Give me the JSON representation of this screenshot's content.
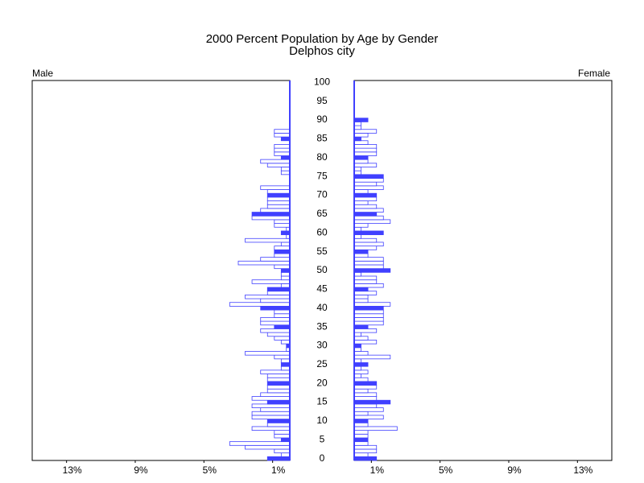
{
  "chart_data": {
    "type": "pyramid",
    "title": "2000 Percent Population by Age by Gender",
    "subtitle": "Delphos city",
    "categories": [
      0,
      null,
      null,
      null,
      null,
      5,
      null,
      null,
      null,
      null,
      10,
      null,
      null,
      null,
      null,
      15,
      null,
      null,
      null,
      null,
      20,
      null,
      null,
      null,
      null,
      25,
      null,
      null,
      null,
      null,
      30,
      null,
      null,
      null,
      null,
      35,
      null,
      null,
      null,
      null,
      40,
      null,
      null,
      null,
      null,
      45,
      null,
      null,
      null,
      null,
      50,
      null,
      null,
      null,
      null,
      55,
      null,
      null,
      null,
      null,
      60,
      null,
      null,
      null,
      null,
      65,
      null,
      null,
      null,
      null,
      70,
      null,
      null,
      null,
      null,
      75,
      null,
      null,
      null,
      null,
      80,
      null,
      null,
      null,
      null,
      85,
      null,
      null,
      null,
      null,
      90,
      null,
      null,
      null,
      null,
      95,
      null,
      null,
      null,
      null,
      100
    ],
    "series": [
      {
        "name": "Male",
        "color": "#4040ff",
        "values": [
          1.3,
          0.5,
          0.9,
          2.6,
          3.5,
          0.5,
          0.9,
          0.9,
          2.2,
          1.3,
          1.3,
          2.2,
          2.2,
          1.7,
          2.2,
          1.3,
          2.2,
          1.7,
          1.3,
          1.3,
          1.3,
          1.3,
          1.3,
          1.7,
          0.5,
          0.5,
          0.5,
          0.9,
          2.6,
          0.2,
          0.2,
          0.5,
          0.9,
          1.3,
          1.7,
          0.9,
          1.7,
          1.7,
          0.9,
          0.9,
          1.7,
          3.5,
          1.7,
          2.6,
          1.3,
          1.3,
          0.5,
          2.2,
          0.5,
          0.5,
          0.5,
          0.9,
          3.0,
          1.7,
          0.9,
          0.9,
          0.9,
          0.5,
          2.6,
          0.2,
          0.5,
          0.2,
          0.9,
          0.9,
          2.2,
          2.2,
          1.7,
          1.3,
          1.3,
          1.3,
          1.3,
          1.3,
          1.7,
          0,
          0,
          0,
          0.5,
          0.5,
          1.3,
          1.7,
          0.5,
          0.9,
          0.9,
          0.9,
          0,
          0.5,
          0.9,
          0.9,
          0,
          0,
          0,
          0,
          0,
          0,
          0,
          0,
          0,
          0,
          0,
          0,
          0
        ]
      },
      {
        "name": "Female",
        "color": "#4040ff",
        "values": [
          1.3,
          0.8,
          1.3,
          1.3,
          0.8,
          0.8,
          0.8,
          0.8,
          2.5,
          0.8,
          0.8,
          1.7,
          0.8,
          1.7,
          1.3,
          2.1,
          1.3,
          1.3,
          0.8,
          1.3,
          1.3,
          0.8,
          0.4,
          0.8,
          0.4,
          0.8,
          0.4,
          2.1,
          0.8,
          0.4,
          0.4,
          1.3,
          0.8,
          0.4,
          1.3,
          0.8,
          1.7,
          1.7,
          1.7,
          1.7,
          1.7,
          2.1,
          0.8,
          0.8,
          1.3,
          0.8,
          1.7,
          1.3,
          1.3,
          0.4,
          2.1,
          1.7,
          1.7,
          1.7,
          0.8,
          0.8,
          1.3,
          1.7,
          1.3,
          0.4,
          1.7,
          0.4,
          0.8,
          2.1,
          1.7,
          1.3,
          1.7,
          1.3,
          0.8,
          1.3,
          1.3,
          0.8,
          1.7,
          1.3,
          1.7,
          1.7,
          0.4,
          0.4,
          1.3,
          0.8,
          0.8,
          1.3,
          1.3,
          1.3,
          0.8,
          0.4,
          0.8,
          1.3,
          0.4,
          0.4,
          0.8,
          0,
          0,
          0,
          0,
          0,
          0,
          0,
          0,
          0,
          0
        ]
      }
    ],
    "xlim": [
      0,
      15
    ],
    "xticks": [
      {
        "value": 13,
        "label": "13%"
      },
      {
        "value": 9,
        "label": "9%"
      },
      {
        "value": 5,
        "label": "5%"
      },
      {
        "value": 1,
        "label": "1%"
      }
    ]
  }
}
